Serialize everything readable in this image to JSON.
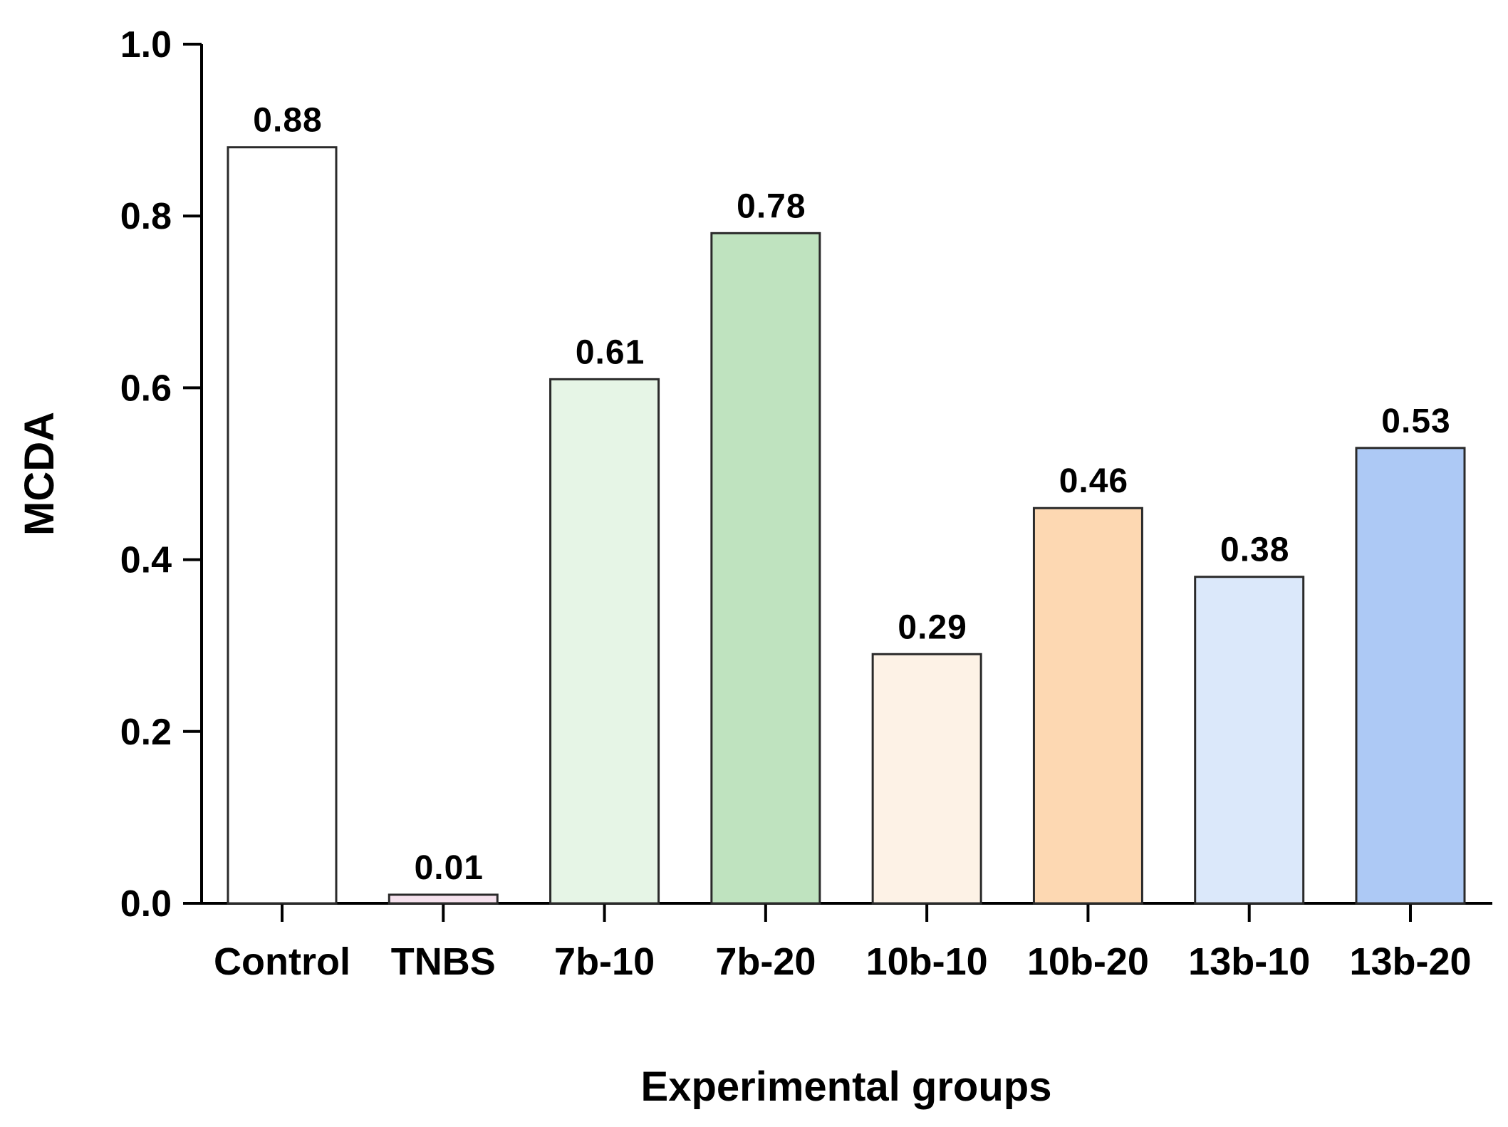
{
  "chart_data": {
    "type": "bar",
    "title": "",
    "xlabel": "Experimental groups",
    "ylabel": "MCDA",
    "ylim": [
      0.0,
      1.0
    ],
    "yticks": [
      0.0,
      0.2,
      0.4,
      0.6,
      0.8,
      1.0
    ],
    "ytick_labels": [
      "0.0",
      "0.2",
      "0.4",
      "0.6",
      "0.8",
      "1.0"
    ],
    "categories": [
      "Control",
      "TNBS",
      "7b-10",
      "7b-20",
      "10b-10",
      "10b-20",
      "13b-10",
      "13b-20"
    ],
    "values": [
      0.88,
      0.01,
      0.61,
      0.78,
      0.29,
      0.46,
      0.38,
      0.53
    ],
    "value_labels": [
      "0.88",
      "0.01",
      "0.61",
      "0.78",
      "0.29",
      "0.46",
      "0.38",
      "0.53"
    ],
    "colors": [
      "#ffffff",
      "#f6e2ee",
      "#e6f5e6",
      "#bfe3bf",
      "#fdf2e6",
      "#fdd8b2",
      "#dbe8fa",
      "#adc9f5"
    ],
    "grid": false,
    "legend": "none"
  }
}
